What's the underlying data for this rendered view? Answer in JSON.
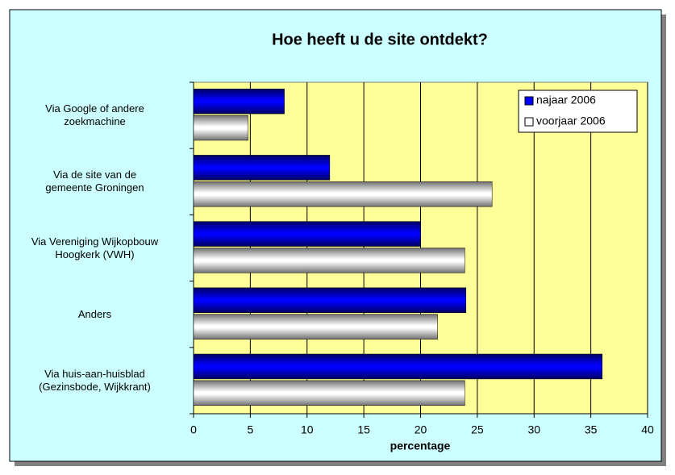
{
  "chart_data": {
    "type": "bar",
    "orientation": "horizontal",
    "title": "Hoe heeft u de site ontdekt?",
    "x_label": "percentage",
    "categories": [
      "Via Google of andere\nzoekmachine",
      "Via de site van de\ngemeente Groningen",
      "Via Vereniging Wijkopbouw\nHoogkerk (VWH)",
      "Anders",
      "Via huis-aan-huisblad\n(Gezinsbode, Wijkkrant)"
    ],
    "series": [
      {
        "name": "najaar 2006",
        "color": "#0000ff",
        "values": [
          8,
          12,
          20,
          24,
          36
        ]
      },
      {
        "name": "voorjaar 2006",
        "color": "#ffffff",
        "values": [
          4.8,
          26.3,
          23.9,
          21.5,
          23.9
        ]
      }
    ],
    "xlim": [
      0,
      40
    ],
    "xticks": [
      0,
      5,
      10,
      15,
      20,
      25,
      30,
      35,
      40
    ],
    "grid": true,
    "legend": "top-right"
  }
}
